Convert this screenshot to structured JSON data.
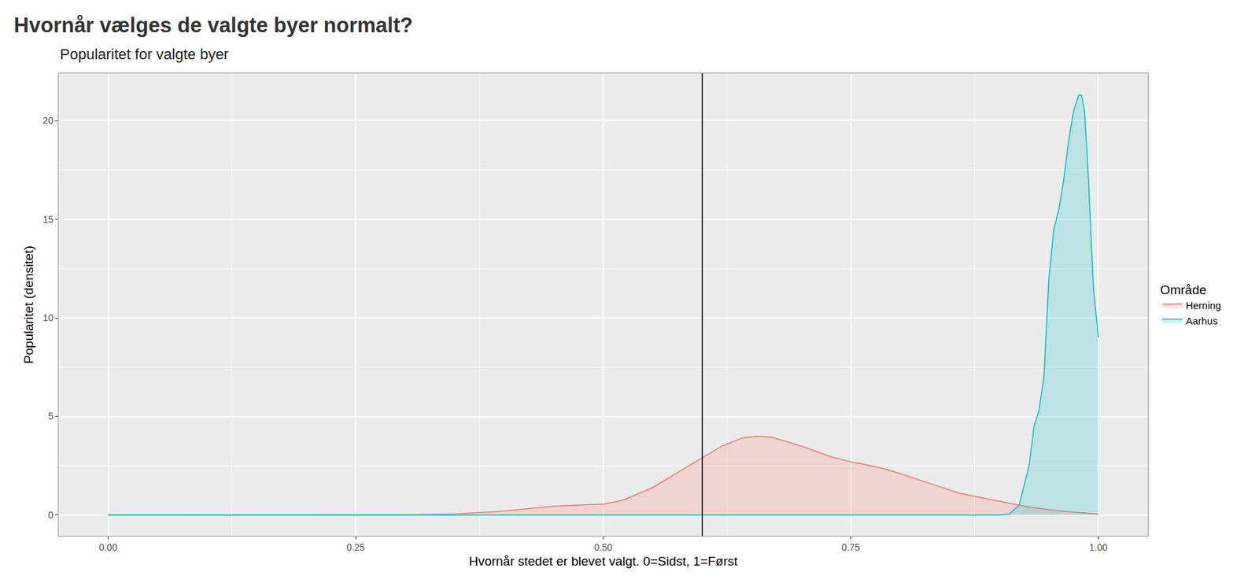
{
  "chart_data": {
    "type": "area",
    "title": "Hvornår vælges de valgte byer normalt?",
    "subtitle": "Popularitet for valgte byer",
    "x_label": "Hvornår stedet er blevet valgt. 0=Sidst, 1=Først",
    "y_label": "Popularitet (densitet)",
    "legend_title": "Område",
    "legend": "right",
    "grid": true,
    "vline_x": 0.6,
    "xlim": [
      -0.05,
      1.05
    ],
    "ylim": [
      -1.06,
      22.4
    ],
    "xticks": [
      {
        "value": 0,
        "label": "0.00"
      },
      {
        "value": 0.25,
        "label": "0.25"
      },
      {
        "value": 0.5,
        "label": "0.50"
      },
      {
        "value": 0.75,
        "label": "0.75"
      },
      {
        "value": 1,
        "label": "1.00"
      }
    ],
    "yticks": [
      0,
      5,
      10,
      15,
      20
    ],
    "series": [
      {
        "name": "Herning",
        "color": "#F8766D",
        "x": [
          0,
          0.3,
          0.35,
          0.4,
          0.45,
          0.5,
          0.52,
          0.55,
          0.58,
          0.6,
          0.62,
          0.64,
          0.655,
          0.67,
          0.7,
          0.73,
          0.75,
          0.78,
          0.8,
          0.83,
          0.86,
          0.9,
          0.93,
          0.96,
          1.0
        ],
        "values": [
          0,
          0.005,
          0.05,
          0.2,
          0.45,
          0.55,
          0.75,
          1.4,
          2.3,
          2.9,
          3.5,
          3.9,
          4.0,
          3.95,
          3.5,
          2.95,
          2.7,
          2.4,
          2.1,
          1.6,
          1.1,
          0.7,
          0.4,
          0.2,
          0.05
        ]
      },
      {
        "name": "Aarhus",
        "color": "#00BFC4",
        "x": [
          0,
          0.9,
          0.91,
          0.92,
          0.93,
          0.935,
          0.94,
          0.945,
          0.95,
          0.955,
          0.96,
          0.965,
          0.97,
          0.975,
          0.98,
          0.983,
          0.986,
          0.99,
          0.995,
          1.0
        ],
        "values": [
          0,
          0,
          0.05,
          0.5,
          2.5,
          4.5,
          5.3,
          7,
          12,
          14.5,
          15.5,
          17,
          19,
          20.5,
          21.3,
          21.3,
          20.5,
          17,
          11.5,
          9
        ]
      }
    ]
  }
}
